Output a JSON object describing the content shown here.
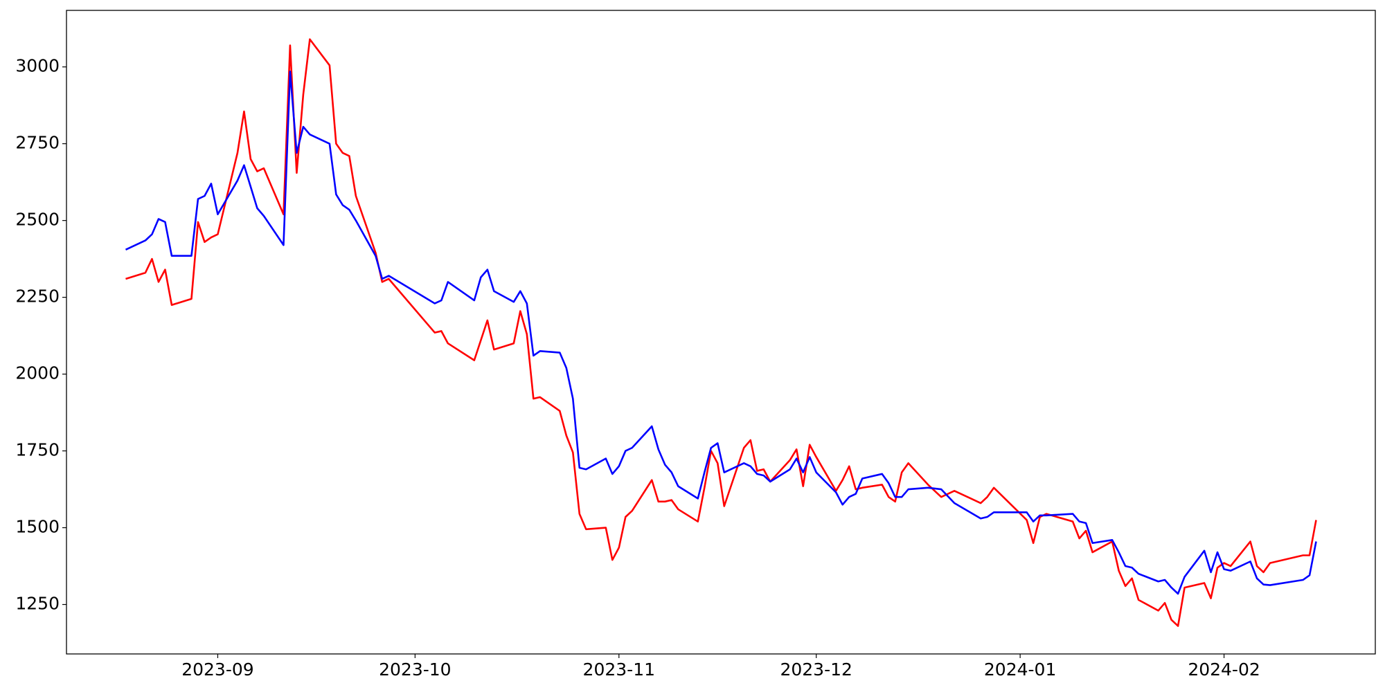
{
  "chart_data": {
    "type": "line",
    "x": [
      19587,
      19590,
      19591,
      19592,
      19593,
      19594,
      19597,
      19598,
      19599,
      19600,
      19601,
      19604,
      19605,
      19606,
      19607,
      19608,
      19611,
      19612,
      19613,
      19614,
      19615,
      19618,
      19619,
      19620,
      19621,
      19622,
      19625,
      19626,
      19627,
      19634,
      19635,
      19636,
      19640,
      19641,
      19642,
      19643,
      19646,
      19647,
      19648,
      19649,
      19650,
      19653,
      19654,
      19655,
      19656,
      19657,
      19660,
      19661,
      19662,
      19663,
      19664,
      19667,
      19668,
      19669,
      19670,
      19671,
      19674,
      19675,
      19676,
      19677,
      19678,
      19681,
      19682,
      19683,
      19684,
      19685,
      19688,
      19689,
      19690,
      19691,
      19692,
      19695,
      19696,
      19697,
      19698,
      19699,
      19702,
      19703,
      19704,
      19705,
      19706,
      19709,
      19711,
      19713,
      19717,
      19718,
      19719,
      19724,
      19725,
      19726,
      19727,
      19731,
      19732,
      19733,
      19734,
      19737,
      19738,
      19739,
      19740,
      19741,
      19744,
      19745,
      19746,
      19747,
      19748,
      19751,
      19752,
      19753,
      19754,
      19755,
      19758,
      19759,
      19760,
      19761,
      19766,
      19767,
      19768
    ],
    "series": [
      {
        "color": "red",
        "values": [
          2310,
          2330,
          2375,
          2300,
          2340,
          2225,
          2245,
          2495,
          2430,
          2445,
          2455,
          2720,
          2855,
          2700,
          2660,
          2670,
          2520,
          3070,
          2655,
          2910,
          3090,
          3005,
          2750,
          2720,
          2710,
          2580,
          2395,
          2300,
          2310,
          2135,
          2140,
          2100,
          2045,
          2110,
          2175,
          2080,
          2100,
          2205,
          2130,
          1920,
          1925,
          1880,
          1800,
          1745,
          1545,
          1495,
          1500,
          1395,
          1435,
          1535,
          1555,
          1655,
          1585,
          1585,
          1590,
          1560,
          1520,
          1630,
          1750,
          1710,
          1570,
          1760,
          1785,
          1685,
          1690,
          1650,
          1720,
          1755,
          1635,
          1770,
          1730,
          1620,
          1655,
          1700,
          1625,
          1630,
          1640,
          1600,
          1585,
          1680,
          1710,
          1640,
          1600,
          1620,
          1580,
          1600,
          1630,
          1525,
          1450,
          1535,
          1545,
          1520,
          1465,
          1490,
          1420,
          1455,
          1360,
          1310,
          1335,
          1265,
          1230,
          1255,
          1200,
          1180,
          1305,
          1320,
          1270,
          1370,
          1385,
          1375,
          1455,
          1375,
          1355,
          1385,
          1410,
          1410,
          1525
        ]
      },
      {
        "color": "blue",
        "values": [
          2405,
          2435,
          2455,
          2505,
          2495,
          2385,
          2385,
          2570,
          2580,
          2620,
          2520,
          2630,
          2680,
          2610,
          2540,
          2515,
          2420,
          2985,
          2720,
          2805,
          2780,
          2750,
          2585,
          2550,
          2535,
          2500,
          2385,
          2310,
          2320,
          2230,
          2240,
          2300,
          2240,
          2315,
          2340,
          2270,
          2235,
          2270,
          2230,
          2060,
          2075,
          2070,
          2020,
          1920,
          1695,
          1690,
          1725,
          1675,
          1700,
          1750,
          1760,
          1830,
          1755,
          1705,
          1680,
          1635,
          1595,
          1680,
          1760,
          1775,
          1680,
          1710,
          1700,
          1675,
          1670,
          1650,
          1690,
          1725,
          1680,
          1730,
          1680,
          1615,
          1575,
          1600,
          1610,
          1660,
          1675,
          1645,
          1600,
          1600,
          1625,
          1630,
          1625,
          1580,
          1530,
          1535,
          1550,
          1550,
          1520,
          1540,
          1540,
          1545,
          1520,
          1515,
          1450,
          1460,
          1420,
          1375,
          1370,
          1350,
          1325,
          1330,
          1305,
          1285,
          1340,
          1425,
          1355,
          1420,
          1365,
          1360,
          1390,
          1335,
          1315,
          1313,
          1330,
          1345,
          1455
        ]
      }
    ],
    "xlim": [
      19578,
      19777
    ],
    "xticks": [
      {
        "value": 19601,
        "label": "2023-09"
      },
      {
        "value": 19631,
        "label": "2023-10"
      },
      {
        "value": 19662,
        "label": "2023-11"
      },
      {
        "value": 19692,
        "label": "2023-12"
      },
      {
        "value": 19723,
        "label": "2024-01"
      },
      {
        "value": 19754,
        "label": "2024-02"
      }
    ],
    "ylim": [
      1089,
      3184
    ],
    "yticks": [
      1250,
      1500,
      1750,
      2000,
      2250,
      2500,
      2750,
      3000
    ],
    "grid": false
  }
}
